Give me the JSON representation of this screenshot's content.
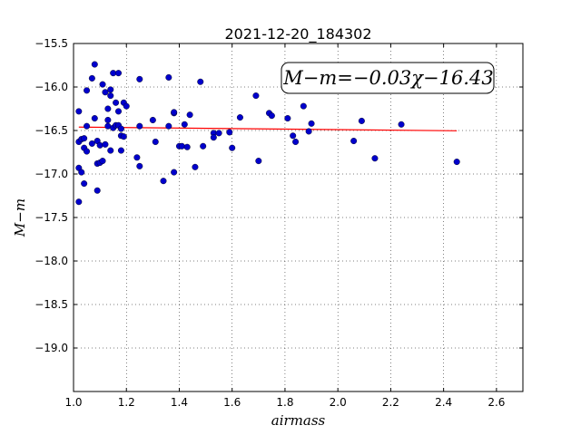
{
  "chart_data": {
    "type": "scatter",
    "title": "2021-12-20_184302",
    "xlabel": "airmass",
    "ylabel": "M−m",
    "xlim": [
      1.0,
      2.7
    ],
    "ylim": [
      -15.5,
      -19.5
    ],
    "y_inverted": true,
    "grid": true,
    "grid_style": "dotted",
    "xticks": [
      "1.0",
      "1.2",
      "1.4",
      "1.6",
      "1.8",
      "2.0",
      "2.2",
      "2.4",
      "2.6"
    ],
    "yticks": [
      "−15.5",
      "−16.0",
      "−16.5",
      "−17.0",
      "−17.5",
      "−18.0",
      "−18.5",
      "−19.0"
    ],
    "annotation": "M−m=−0.03χ−16.43",
    "colors": {
      "points": "#0000cc",
      "fit": "#ff0000"
    },
    "fit": {
      "slope": -0.03,
      "intercept": -16.43,
      "x_range": [
        1.02,
        2.45
      ]
    },
    "series": [
      {
        "points": [
          [
            1.02,
            -16.28
          ],
          [
            1.02,
            -16.63
          ],
          [
            1.02,
            -16.93
          ],
          [
            1.02,
            -17.32
          ],
          [
            1.03,
            -16.6
          ],
          [
            1.03,
            -16.98
          ],
          [
            1.04,
            -16.59
          ],
          [
            1.04,
            -16.7
          ],
          [
            1.04,
            -17.11
          ],
          [
            1.05,
            -16.74
          ],
          [
            1.05,
            -16.45
          ],
          [
            1.05,
            -16.04
          ],
          [
            1.07,
            -15.9
          ],
          [
            1.07,
            -16.65
          ],
          [
            1.08,
            -16.36
          ],
          [
            1.08,
            -15.74
          ],
          [
            1.09,
            -16.88
          ],
          [
            1.09,
            -17.19
          ],
          [
            1.09,
            -16.62
          ],
          [
            1.1,
            -16.67
          ],
          [
            1.1,
            -16.87
          ],
          [
            1.11,
            -16.85
          ],
          [
            1.11,
            -15.97
          ],
          [
            1.12,
            -16.66
          ],
          [
            1.12,
            -16.06
          ],
          [
            1.13,
            -16.25
          ],
          [
            1.13,
            -16.38
          ],
          [
            1.13,
            -16.45
          ],
          [
            1.14,
            -16.1
          ],
          [
            1.14,
            -16.73
          ],
          [
            1.14,
            -16.03
          ],
          [
            1.15,
            -16.47
          ],
          [
            1.15,
            -15.84
          ],
          [
            1.16,
            -16.18
          ],
          [
            1.16,
            -16.44
          ],
          [
            1.17,
            -15.84
          ],
          [
            1.17,
            -16.44
          ],
          [
            1.17,
            -16.28
          ],
          [
            1.18,
            -16.48
          ],
          [
            1.18,
            -16.56
          ],
          [
            1.18,
            -16.73
          ],
          [
            1.19,
            -16.18
          ],
          [
            1.19,
            -16.57
          ],
          [
            1.2,
            -16.22
          ],
          [
            1.24,
            -16.81
          ],
          [
            1.25,
            -16.91
          ],
          [
            1.25,
            -15.91
          ],
          [
            1.25,
            -16.45
          ],
          [
            1.3,
            -16.38
          ],
          [
            1.31,
            -16.63
          ],
          [
            1.34,
            -17.08
          ],
          [
            1.36,
            -16.45
          ],
          [
            1.36,
            -15.89
          ],
          [
            1.38,
            -16.98
          ],
          [
            1.38,
            -16.3
          ],
          [
            1.38,
            -16.29
          ],
          [
            1.4,
            -16.68
          ],
          [
            1.41,
            -16.68
          ],
          [
            1.42,
            -16.43
          ],
          [
            1.43,
            -16.69
          ],
          [
            1.44,
            -16.32
          ],
          [
            1.46,
            -16.92
          ],
          [
            1.48,
            -15.94
          ],
          [
            1.49,
            -16.68
          ],
          [
            1.53,
            -16.53
          ],
          [
            1.53,
            -16.58
          ],
          [
            1.55,
            -16.53
          ],
          [
            1.59,
            -16.52
          ],
          [
            1.6,
            -16.7
          ],
          [
            1.63,
            -16.35
          ],
          [
            1.69,
            -16.1
          ],
          [
            1.7,
            -16.85
          ],
          [
            1.74,
            -16.3
          ],
          [
            1.75,
            -16.33
          ],
          [
            1.81,
            -16.36
          ],
          [
            1.83,
            -16.56
          ],
          [
            1.84,
            -16.63
          ],
          [
            1.87,
            -16.22
          ],
          [
            1.89,
            -16.51
          ],
          [
            1.9,
            -16.42
          ],
          [
            2.06,
            -16.62
          ],
          [
            2.09,
            -16.39
          ],
          [
            2.14,
            -16.82
          ],
          [
            2.24,
            -16.43
          ],
          [
            2.45,
            -16.86
          ]
        ]
      }
    ]
  }
}
